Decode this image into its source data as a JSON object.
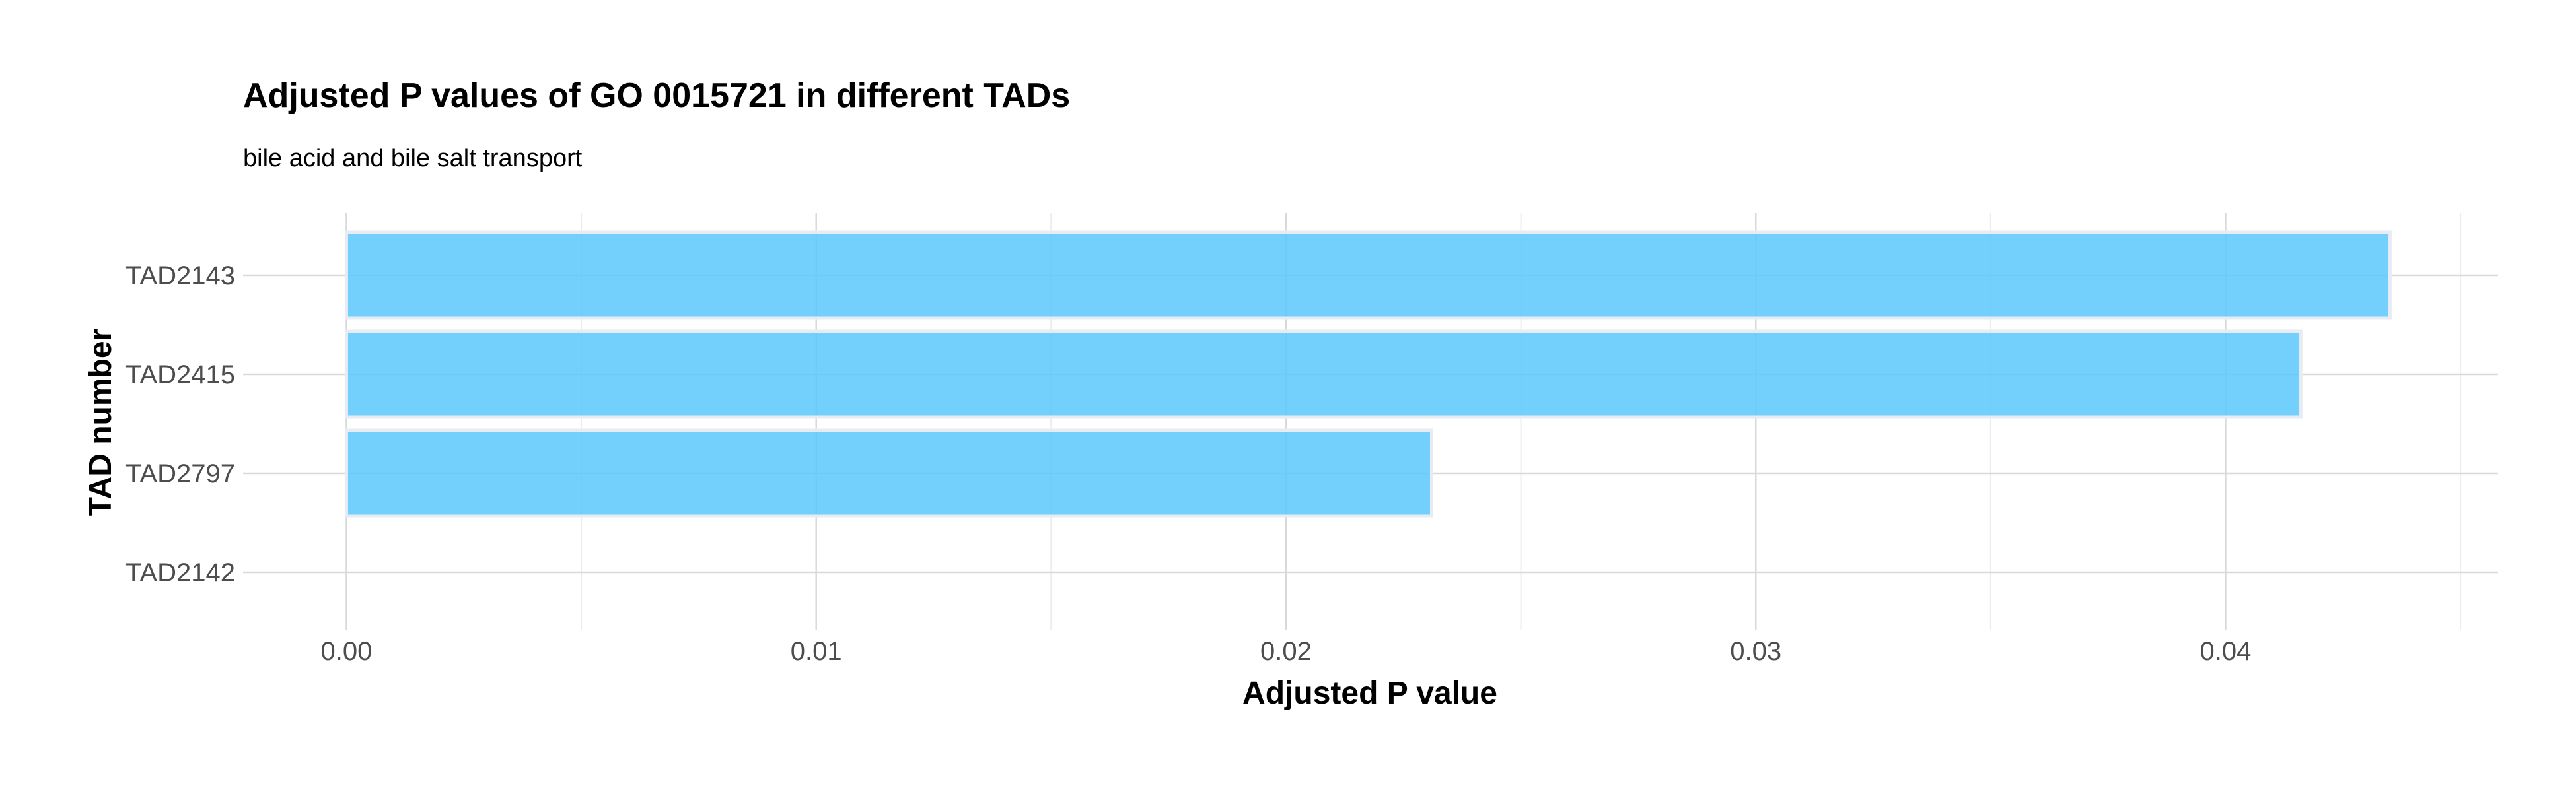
{
  "chart_data": {
    "type": "bar",
    "orientation": "horizontal",
    "title": "Adjusted P values of GO 0015721 in different TADs",
    "subtitle": "bile acid and bile salt transport",
    "xlabel": "Adjusted P value",
    "ylabel": "TAD number",
    "categories": [
      "TAD2143",
      "TAD2415",
      "TAD2797",
      "TAD2142"
    ],
    "values": [
      0.0435,
      0.0416,
      0.0231,
      0.0
    ],
    "xlim": [
      -0.0022,
      0.0458
    ],
    "x_ticks": [
      0.0,
      0.01,
      0.02,
      0.03,
      0.04
    ],
    "x_tick_labels": [
      "0.00",
      "0.01",
      "0.02",
      "0.03",
      "0.04"
    ],
    "x_minor_ticks": [
      0.005,
      0.015,
      0.025,
      0.035,
      0.045
    ],
    "grid": true,
    "legend": "none",
    "bar_fill": "#5bc8fb",
    "bar_outline": "#e6ecf2"
  }
}
